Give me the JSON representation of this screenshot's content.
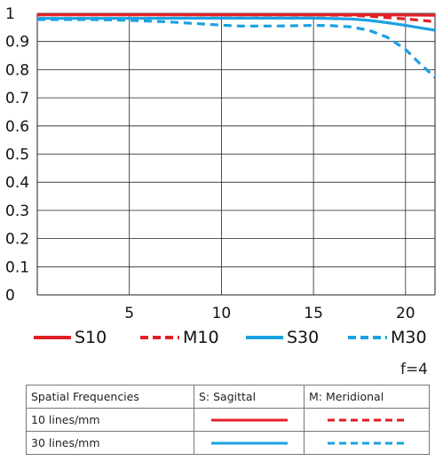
{
  "colors": {
    "red": "#e21f26",
    "blue": "#1ba1e2",
    "grid": "#222222",
    "axis_text": "#111111"
  },
  "chart_data": {
    "type": "line",
    "x_ticks": [
      5,
      10,
      15,
      20
    ],
    "y_ticks": [
      "0",
      "0.1",
      "0.2",
      "0.3",
      "0.4",
      "0.5",
      "0.6",
      "0.7",
      "0.8",
      "0.9",
      "1"
    ],
    "xlim": [
      0,
      21.6
    ],
    "ylim": [
      0,
      1
    ],
    "grid": true,
    "series": [
      {
        "name": "S10",
        "color": "#e21f26",
        "dash": false,
        "points": [
          [
            0,
            0.995
          ],
          [
            5,
            0.995
          ],
          [
            10,
            0.995
          ],
          [
            15,
            0.995
          ],
          [
            18,
            0.995
          ],
          [
            20,
            0.994
          ],
          [
            21.6,
            0.993
          ]
        ]
      },
      {
        "name": "M10",
        "color": "#e21f26",
        "dash": true,
        "points": [
          [
            0,
            0.995
          ],
          [
            5,
            0.995
          ],
          [
            10,
            0.995
          ],
          [
            15,
            0.994
          ],
          [
            17,
            0.993
          ],
          [
            18,
            0.99
          ],
          [
            19,
            0.985
          ],
          [
            20,
            0.98
          ],
          [
            21,
            0.974
          ],
          [
            21.6,
            0.97
          ]
        ]
      },
      {
        "name": "S30",
        "color": "#1ba1e2",
        "dash": false,
        "points": [
          [
            0,
            0.982
          ],
          [
            5,
            0.982
          ],
          [
            10,
            0.983
          ],
          [
            15,
            0.983
          ],
          [
            17,
            0.98
          ],
          [
            18,
            0.975
          ],
          [
            19,
            0.967
          ],
          [
            20,
            0.957
          ],
          [
            21,
            0.946
          ],
          [
            21.6,
            0.94
          ]
        ]
      },
      {
        "name": "M30",
        "color": "#1ba1e2",
        "dash": true,
        "points": [
          [
            0,
            0.978
          ],
          [
            3,
            0.978
          ],
          [
            5,
            0.975
          ],
          [
            7,
            0.97
          ],
          [
            9,
            0.962
          ],
          [
            10,
            0.958
          ],
          [
            11,
            0.955
          ],
          [
            13,
            0.955
          ],
          [
            15,
            0.957
          ],
          [
            16,
            0.956
          ],
          [
            17,
            0.952
          ],
          [
            18,
            0.94
          ],
          [
            19,
            0.915
          ],
          [
            20,
            0.872
          ],
          [
            20.8,
            0.82
          ],
          [
            21.6,
            0.773
          ]
        ]
      }
    ]
  },
  "legend": [
    "S10",
    "M10",
    "S30",
    "M30"
  ],
  "aperture_label": "f=4",
  "table": {
    "header": [
      "Spatial Frequencies",
      "S: Sagittal",
      "M: Meridional"
    ],
    "rows": [
      "10 lines/mm",
      "30 lines/mm"
    ]
  }
}
